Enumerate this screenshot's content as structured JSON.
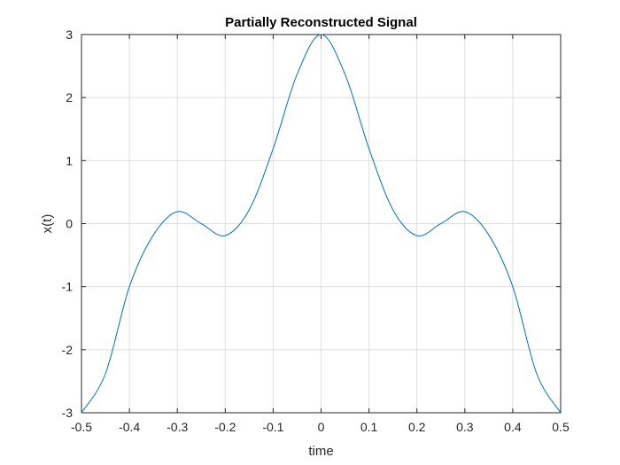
{
  "chart_data": {
    "type": "line",
    "title": "Partially Reconstructed Signal",
    "xlabel": "time",
    "ylabel": "x(t)",
    "xlim": [
      -0.5,
      0.5
    ],
    "ylim": [
      -3,
      3
    ],
    "xticks": [
      -0.5,
      -0.4,
      -0.3,
      -0.2,
      -0.1,
      0,
      0.1,
      0.2,
      0.3,
      0.4,
      0.5
    ],
    "xtick_labels": [
      "-0.5",
      "-0.4",
      "-0.3",
      "-0.2",
      "-0.1",
      "0",
      "0.1",
      "0.2",
      "0.3",
      "0.4",
      "0.5"
    ],
    "yticks": [
      -3,
      -2,
      -1,
      0,
      1,
      2,
      3
    ],
    "ytick_labels": [
      "-3",
      "-2",
      "-1",
      "0",
      "1",
      "2",
      "3"
    ],
    "grid": true,
    "series": [
      {
        "color": "#0072bd",
        "x": [
          -0.5,
          -0.45,
          -0.4,
          -0.35,
          -0.3,
          -0.25,
          -0.2,
          -0.15,
          -0.1,
          -0.05,
          0,
          0.05,
          0.1,
          0.15,
          0.2,
          0.25,
          0.3,
          0.35,
          0.4,
          0.45,
          0.5
        ],
        "y": [
          -3,
          -2.38,
          -1.0,
          -0.18,
          0.19,
          0.0,
          -0.19,
          0.22,
          1.19,
          2.37,
          3,
          2.37,
          1.19,
          0.22,
          -0.19,
          0.0,
          0.19,
          -0.18,
          -1.0,
          -2.38,
          -3
        ]
      }
    ]
  }
}
